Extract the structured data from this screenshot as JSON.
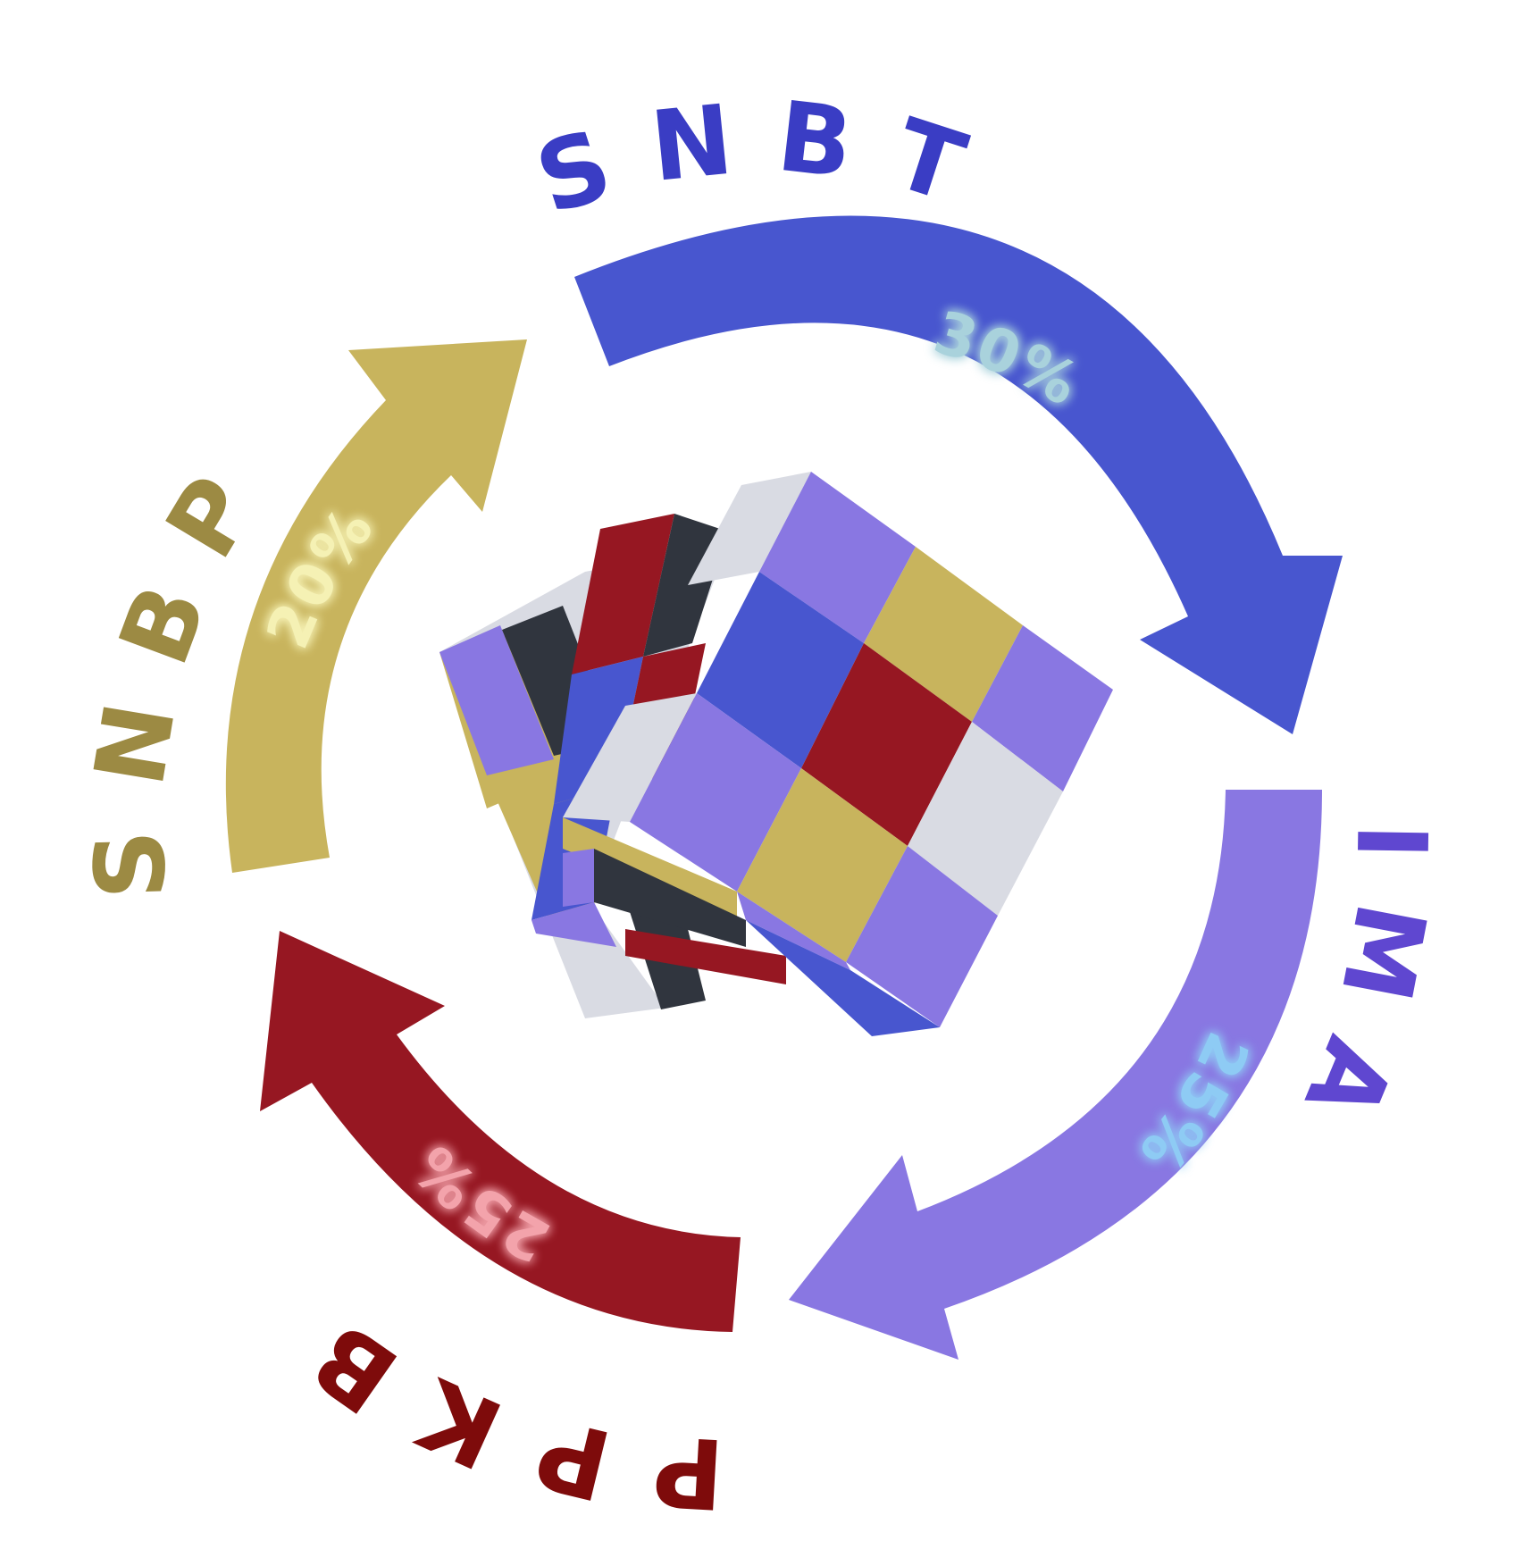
{
  "diagram": {
    "segments": [
      {
        "id": "snbt",
        "label": "SNBT",
        "percent": "30%",
        "color": "#4856cf",
        "label_color": "#3a3dc4",
        "percent_color": "#a9d2dc"
      },
      {
        "id": "simak",
        "label": "SIMAK",
        "percent": "25%",
        "color": "#8977e2",
        "label_color": "#5f47d0",
        "percent_color": "#8ecbf4"
      },
      {
        "id": "ppkb",
        "label": "PPKB",
        "percent": "25%",
        "color": "#961722",
        "label_color": "#7e0b0b",
        "percent_color": "#f3a3ab"
      },
      {
        "id": "snbp",
        "label": "SNBP",
        "percent": "20%",
        "color": "#c8b45d",
        "label_color": "#9c8a43",
        "percent_color": "#f5f1b4"
      }
    ],
    "cube_colors": {
      "lavender": "#8977e2",
      "blue": "#4856cf",
      "gold": "#c8b45d",
      "red": "#961722",
      "white": "#d9dbe3",
      "dark": "#30353e"
    }
  }
}
